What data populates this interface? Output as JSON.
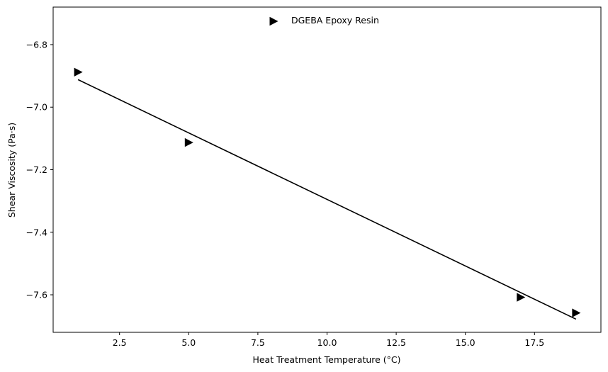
{
  "chart_data": {
    "type": "scatter",
    "xlabel": "Heat Treatment Temperature (°C)",
    "ylabel": "Shear Viscosity (Pa·s)",
    "xlim": [
      0.1,
      19.9
    ],
    "ylim": [
      -7.72,
      -6.68
    ],
    "x_ticks": [
      2.5,
      5.0,
      7.5,
      10.0,
      12.5,
      15.0,
      17.5
    ],
    "x_tick_labels": [
      "2.5",
      "5.0",
      "7.5",
      "10.0",
      "12.5",
      "15.0",
      "17.5"
    ],
    "y_ticks": [
      -6.8,
      -7.0,
      -7.2,
      -7.4,
      -7.6
    ],
    "y_tick_labels": [
      "−6.8",
      "−7.0",
      "−7.2",
      "−7.4",
      "−7.6"
    ],
    "grid": false,
    "legend_position": "top-center",
    "series": [
      {
        "name": "DGEBA Epoxy Resin",
        "marker": "triangle-right",
        "color": "#000000",
        "x": [
          1,
          5,
          17,
          19
        ],
        "y": [
          -6.888,
          -7.113,
          -7.608,
          -7.658
        ]
      }
    ],
    "fit_line": {
      "color": "#000000",
      "x": [
        1,
        19
      ],
      "y": [
        -6.912,
        -7.678
      ]
    }
  }
}
